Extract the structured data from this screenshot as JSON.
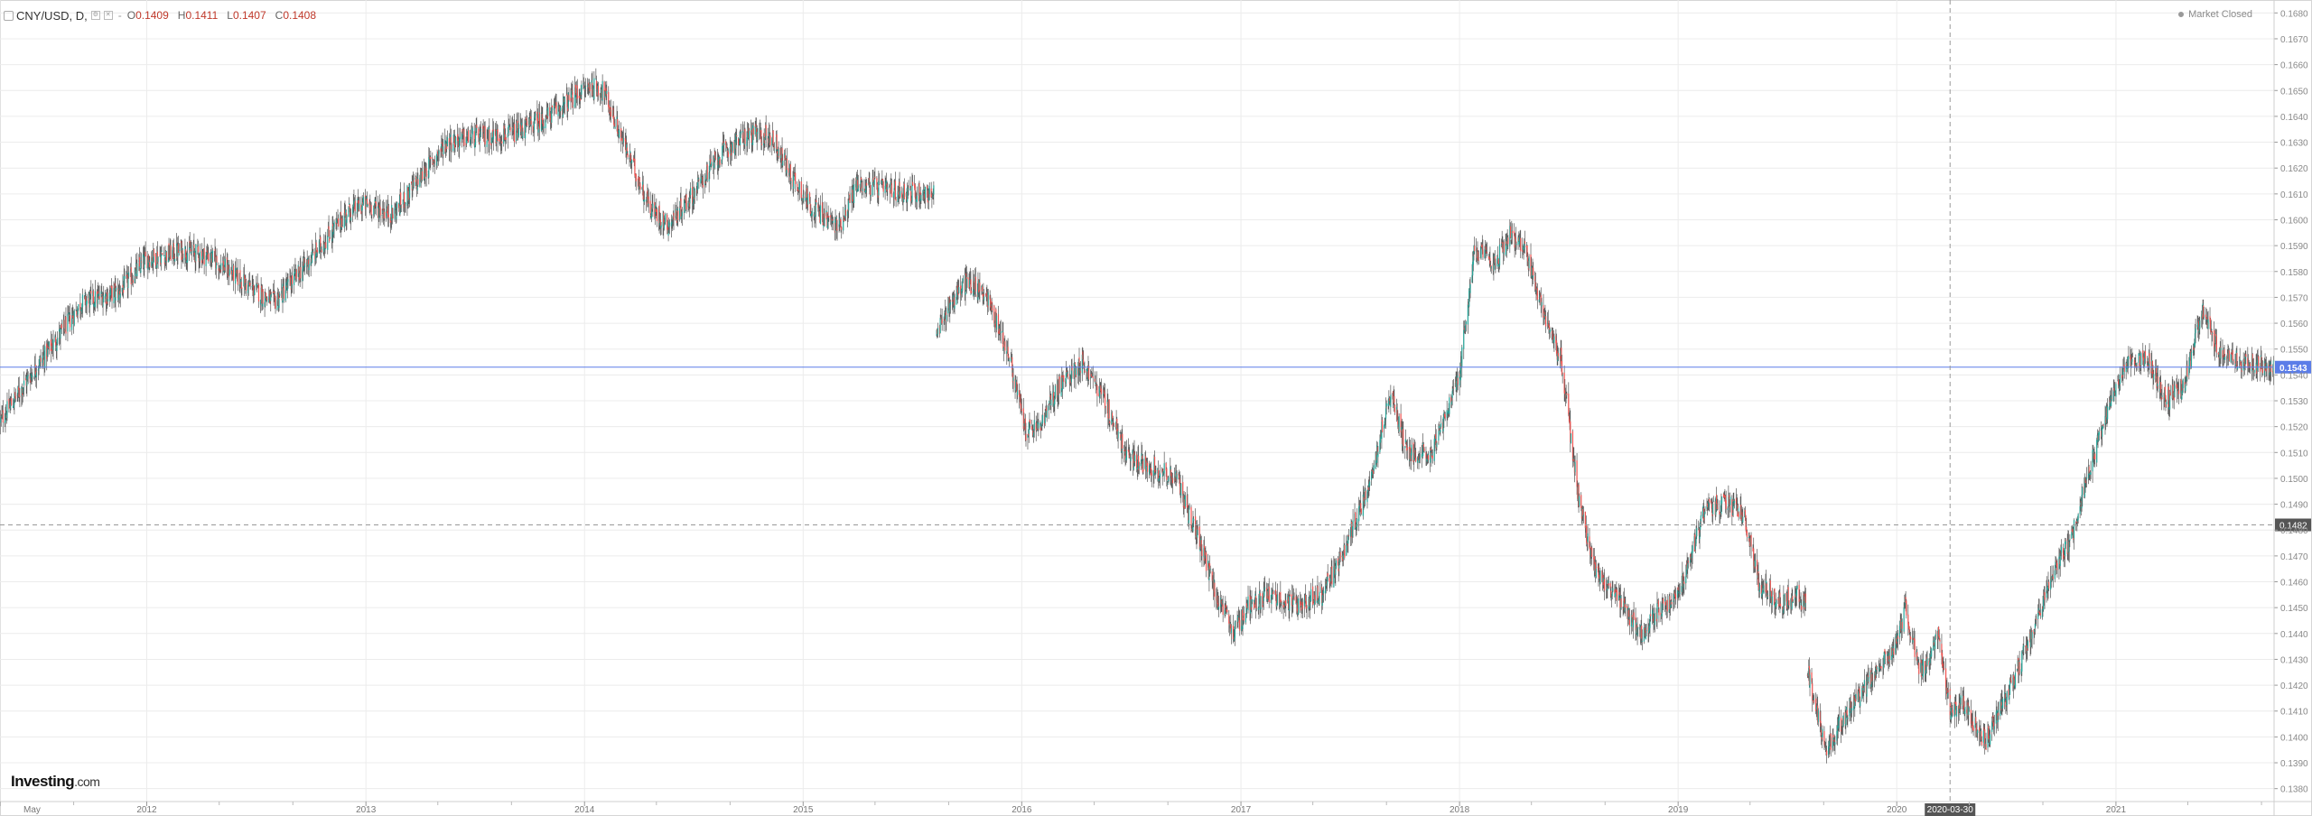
{
  "legend": {
    "symbol": "CNY/USD, D,",
    "separator": "-",
    "open_label": "O",
    "open": "0.1409",
    "high_label": "H",
    "high": "0.1411",
    "low_label": "L",
    "low": "0.1407",
    "close_label": "C",
    "close": "0.1408"
  },
  "status": "Market Closed",
  "logo": {
    "name": "Investing",
    "suffix": ".com"
  },
  "colors": {
    "up": "#26a69a",
    "down": "#ef5350",
    "wick": "#555555",
    "current_price_line": "#5b7de8",
    "crosshair": "#999999",
    "grid": "#ececec"
  },
  "chart_data": {
    "type": "candlestick",
    "title": "CNY/USD, D,",
    "xlabel": "",
    "ylabel": "",
    "ylim": [
      0.1375,
      0.1685
    ],
    "y_ticks": [
      "0.1380",
      "0.1390",
      "0.1400",
      "0.1410",
      "0.1420",
      "0.1430",
      "0.1440",
      "0.1450",
      "0.1460",
      "0.1470",
      "0.1480",
      "0.1490",
      "0.1500",
      "0.1510",
      "0.1520",
      "0.1530",
      "0.1540",
      "0.1550",
      "0.1560",
      "0.1570",
      "0.1580",
      "0.1590",
      "0.1600",
      "0.1610",
      "0.1620",
      "0.1630",
      "0.1640",
      "0.1650",
      "0.1660",
      "0.1670",
      "0.1680"
    ],
    "x_range": [
      "2011-05-01",
      "2021-09-22"
    ],
    "x_ticks": [
      {
        "date": "2011-05-01",
        "label": "May"
      },
      {
        "date": "2012-01-01",
        "label": "2012"
      },
      {
        "date": "2013-01-01",
        "label": "2013"
      },
      {
        "date": "2014-01-01",
        "label": "2014"
      },
      {
        "date": "2015-01-01",
        "label": "2015"
      },
      {
        "date": "2016-01-01",
        "label": "2016"
      },
      {
        "date": "2017-01-01",
        "label": "2017"
      },
      {
        "date": "2018-01-01",
        "label": "2018"
      },
      {
        "date": "2019-01-01",
        "label": "2019"
      },
      {
        "date": "2020-01-01",
        "label": "2020"
      },
      {
        "date": "2021-01-01",
        "label": "2021"
      }
    ],
    "minor_ticks": [
      "2011-09-01",
      "2012-05-01",
      "2012-09-01",
      "2013-05-01",
      "2013-09-01",
      "2014-05-01",
      "2014-09-01",
      "2015-05-01",
      "2015-09-01",
      "2016-05-01",
      "2016-09-01",
      "2017-05-01",
      "2017-09-01",
      "2018-05-01",
      "2018-09-01",
      "2019-05-01",
      "2019-09-01",
      "2020-05-01",
      "2020-09-01",
      "2021-05-01",
      "2021-09-01"
    ],
    "series": [
      {
        "close_path": [
          [
            "2011-05-01",
            0.1522
          ],
          [
            "2011-06-15",
            0.1538
          ],
          [
            "2011-08-01",
            0.1553
          ],
          [
            "2011-09-15",
            0.1568
          ],
          [
            "2011-11-15",
            0.1572
          ],
          [
            "2012-01-01",
            0.1585
          ],
          [
            "2012-03-01",
            0.1588
          ],
          [
            "2012-04-15",
            0.1586
          ],
          [
            "2012-06-15",
            0.1575
          ],
          [
            "2012-08-01",
            0.1568
          ],
          [
            "2012-10-01",
            0.1585
          ],
          [
            "2012-12-01",
            0.1603
          ],
          [
            "2013-01-01",
            0.1606
          ],
          [
            "2013-02-15",
            0.1602
          ],
          [
            "2013-04-01",
            0.1616
          ],
          [
            "2013-05-15",
            0.163
          ],
          [
            "2013-07-01",
            0.1632
          ],
          [
            "2013-09-01",
            0.1633
          ],
          [
            "2013-11-01",
            0.164
          ],
          [
            "2014-01-10",
            0.1652
          ],
          [
            "2014-02-01",
            0.165
          ],
          [
            "2014-03-10",
            0.1628
          ],
          [
            "2014-04-20",
            0.1605
          ],
          [
            "2014-05-20",
            0.1598
          ],
          [
            "2014-07-01",
            0.161
          ],
          [
            "2014-08-15",
            0.1625
          ],
          [
            "2014-10-01",
            0.1633
          ],
          [
            "2014-11-10",
            0.1632
          ],
          [
            "2014-12-10",
            0.1618
          ],
          [
            "2015-01-15",
            0.1605
          ],
          [
            "2015-03-01",
            0.1597
          ],
          [
            "2015-04-01",
            0.1614
          ],
          [
            "2015-06-01",
            0.1611
          ],
          [
            "2015-08-08",
            0.161
          ]
        ]
      },
      {
        "close_path": [
          [
            "2015-08-12",
            0.1555
          ],
          [
            "2015-09-01",
            0.1567
          ],
          [
            "2015-10-01",
            0.1576
          ],
          [
            "2015-11-01",
            0.1572
          ],
          [
            "2015-12-10",
            0.1548
          ],
          [
            "2016-01-08",
            0.1518
          ],
          [
            "2016-02-01",
            0.152
          ],
          [
            "2016-03-01",
            0.1535
          ],
          [
            "2016-04-10",
            0.1545
          ],
          [
            "2016-05-15",
            0.1532
          ],
          [
            "2016-06-25",
            0.1508
          ],
          [
            "2016-08-01",
            0.1505
          ],
          [
            "2016-09-15",
            0.15
          ],
          [
            "2016-10-20",
            0.1478
          ],
          [
            "2016-11-25",
            0.1452
          ],
          [
            "2016-12-20",
            0.144
          ],
          [
            "2017-01-15",
            0.1452
          ],
          [
            "2017-02-20",
            0.1455
          ],
          [
            "2017-04-01",
            0.1451
          ],
          [
            "2017-05-15",
            0.1455
          ],
          [
            "2017-06-20",
            0.147
          ],
          [
            "2017-08-01",
            0.1497
          ],
          [
            "2017-09-08",
            0.1533
          ],
          [
            "2017-10-05",
            0.151
          ],
          [
            "2017-11-15",
            0.151
          ],
          [
            "2017-12-31",
            0.1538
          ],
          [
            "2018-01-25",
            0.1588
          ],
          [
            "2018-03-01",
            0.1583
          ],
          [
            "2018-03-27",
            0.1595
          ],
          [
            "2018-04-20",
            0.1588
          ],
          [
            "2018-05-20",
            0.1565
          ],
          [
            "2018-06-20",
            0.1545
          ],
          [
            "2018-07-20",
            0.149
          ],
          [
            "2018-08-15",
            0.1465
          ],
          [
            "2018-09-15",
            0.1455
          ],
          [
            "2018-10-31",
            0.144
          ],
          [
            "2018-12-01",
            0.145
          ],
          [
            "2019-01-01",
            0.1455
          ],
          [
            "2019-02-15",
            0.1488
          ],
          [
            "2019-03-20",
            0.149
          ],
          [
            "2019-04-20",
            0.1487
          ],
          [
            "2019-05-15",
            0.146
          ],
          [
            "2019-06-20",
            0.1452
          ],
          [
            "2019-07-20",
            0.1455
          ],
          [
            "2019-08-03",
            0.145
          ]
        ]
      },
      {
        "close_path": [
          [
            "2019-08-05",
            0.1425
          ],
          [
            "2019-09-05",
            0.1395
          ],
          [
            "2019-10-10",
            0.141
          ],
          [
            "2019-11-20",
            0.1422
          ],
          [
            "2019-12-31",
            0.1436
          ],
          [
            "2020-01-15",
            0.145
          ],
          [
            "2020-02-10",
            0.1425
          ],
          [
            "2020-03-10",
            0.1438
          ],
          [
            "2020-03-30",
            0.141
          ],
          [
            "2020-04-20",
            0.1413
          ],
          [
            "2020-05-28",
            0.1398
          ],
          [
            "2020-07-01",
            0.1415
          ],
          [
            "2020-08-10",
            0.1438
          ],
          [
            "2020-09-15",
            0.1462
          ],
          [
            "2020-10-20",
            0.1478
          ],
          [
            "2020-11-15",
            0.1502
          ],
          [
            "2020-12-20",
            0.1528
          ],
          [
            "2021-01-20",
            0.1546
          ],
          [
            "2021-02-25",
            0.1546
          ],
          [
            "2021-03-25",
            0.153
          ],
          [
            "2021-04-25",
            0.1536
          ],
          [
            "2021-05-25",
            0.1565
          ],
          [
            "2021-06-20",
            0.155
          ],
          [
            "2021-07-28",
            0.1545
          ],
          [
            "2021-09-22",
            0.1543
          ]
        ]
      }
    ],
    "current_price": 0.1543,
    "current_price_label": "0.1543",
    "crosshair": {
      "date": "2020-03-30",
      "date_label": "2020-03-30",
      "price": 0.1482,
      "price_label": "0.1482"
    },
    "grid": true
  }
}
